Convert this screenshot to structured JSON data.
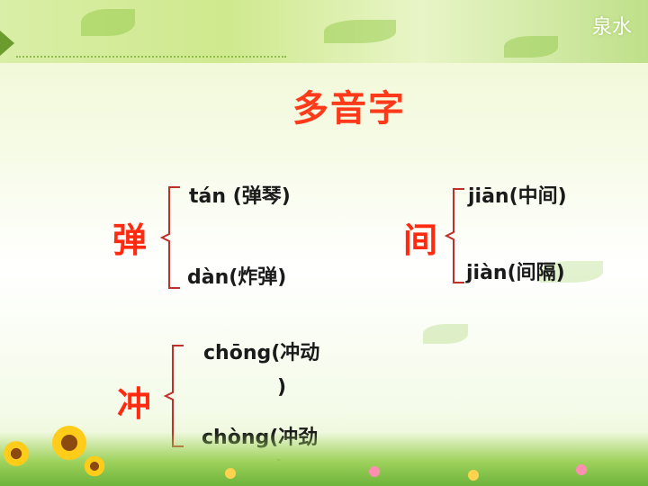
{
  "corner_label": "泉水",
  "title": "多音字",
  "groups": [
    {
      "char": "弹",
      "readings": [
        "tán (弹琴)",
        "dàn(炸弹)"
      ]
    },
    {
      "char": "间",
      "readings": [
        "jiān(中间)",
        "jiàn(间隔)"
      ]
    },
    {
      "char": "冲",
      "readings": [
        "chōng(冲动",
        ")",
        "chòng(冲劲",
        ")"
      ]
    }
  ],
  "colors": {
    "accent": "#ff2a10",
    "text": "#1a1a1a",
    "brace": "#c0302a"
  }
}
